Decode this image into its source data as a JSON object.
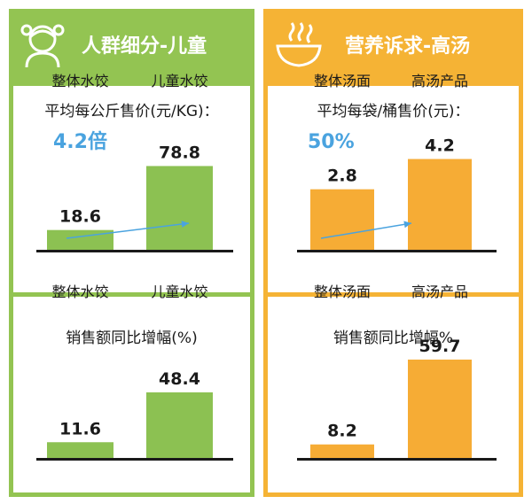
{
  "colors": {
    "green_frame": "#93c452",
    "green_bar": "#8cc152",
    "orange_frame": "#f5b335",
    "orange_bar": "#f6ac35",
    "annotation": "#4aa3df",
    "baseline": "#1a1a1a"
  },
  "panels": [
    {
      "header": {
        "title": "人群细分-儿童",
        "icon": "child-icon"
      },
      "top_subtitle": "平均每公斤售价(元/KG)：",
      "bottom_subtitle": "销售额同比增幅(%)",
      "annotation": "4.2倍"
    },
    {
      "header": {
        "title": "营养诉求-高汤",
        "icon": "soup-bowl-icon"
      },
      "top_subtitle": "平均每袋/桶售价(元)：",
      "bottom_subtitle": "销售额同比增幅%",
      "annotation": "50%"
    }
  ],
  "chart_data": [
    {
      "type": "bar",
      "title": "平均每公斤售价(元/KG)：",
      "categories": [
        "整体水饺",
        "儿童水饺"
      ],
      "values": [
        18.6,
        78.8
      ],
      "annotation": "4.2倍",
      "ylim": [
        0,
        100
      ]
    },
    {
      "type": "bar",
      "title": "销售额同比增幅(%)",
      "categories": [
        "整体水饺",
        "儿童水饺"
      ],
      "values": [
        11.6,
        48.4
      ],
      "ylim": [
        0,
        100
      ]
    },
    {
      "type": "bar",
      "title": "平均每袋/桶售价(元)：",
      "categories": [
        "整体汤面",
        "高汤产品"
      ],
      "values": [
        2.8,
        4.2
      ],
      "annotation": "50%",
      "ylim": [
        0,
        5.7
      ]
    },
    {
      "type": "bar",
      "title": "销售额同比增幅%",
      "categories": [
        "整体汤面",
        "高汤产品"
      ],
      "values": [
        8.2,
        59.7
      ],
      "ylim": [
        0,
        65
      ]
    }
  ]
}
